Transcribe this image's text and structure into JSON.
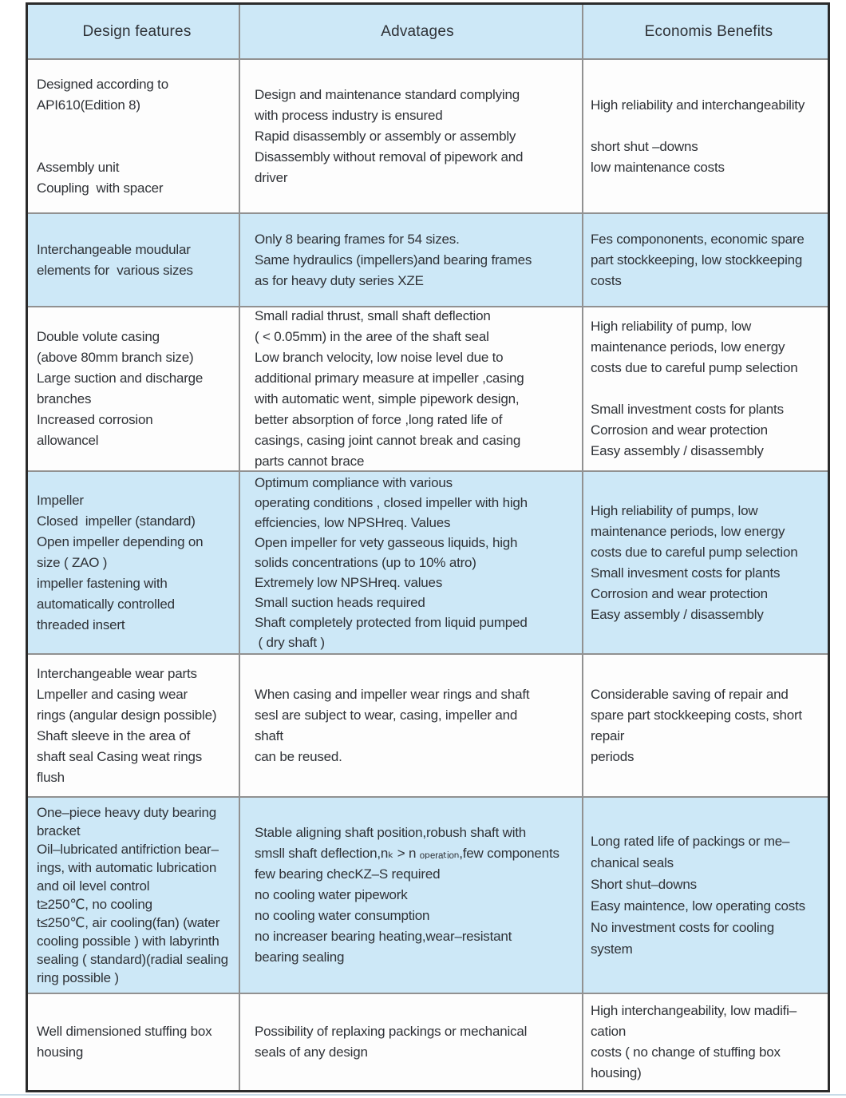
{
  "colors": {
    "cell_blue": "#cde8f7",
    "cell_white": "#fdfdfd",
    "border_outer": "#2b2b2b",
    "border_inner": "#919191",
    "text": "#2f3237",
    "bottom_rule": "#c7dbe8",
    "page_bg": "#ffffff"
  },
  "header": {
    "columns": [
      "Design features",
      "Advatages",
      "Economis Benefits"
    ]
  },
  "rows": [
    {
      "tone": "white",
      "features": [
        "Designed according to",
        "API610(Edition 8)",
        "",
        "",
        "Assembly unit",
        "Coupling  with spacer"
      ],
      "advantages": [
        "Design and maintenance standard complying",
        "with process industry is ensured",
        "Rapid disassembly or assembly or assembly",
        "Disassembly without removal of pipework and",
        "driver"
      ],
      "benefits": [
        "High reliability and interchangeability",
        "",
        "short shut –downs",
        "low maintenance costs"
      ]
    },
    {
      "tone": "blue",
      "features": [
        "Interchangeable moudular",
        "elements for  various sizes"
      ],
      "advantages": [
        "Only 8 bearing frames for 54 sizes.",
        "Same hydraulics (impellers)and bearing frames",
        "as for heavy duty series XZE"
      ],
      "benefits": [
        "Fes compononents, economic spare",
        "part stockkeeping, low stockkeeping",
        "costs"
      ]
    },
    {
      "tone": "white",
      "features": [
        "Double volute casing",
        "(above 80mm branch size)",
        "Large suction and discharge",
        "branches",
        "Increased corrosion",
        "allowancel"
      ],
      "advantages": [
        "Small radial thrust, small shaft deflection",
        "( < 0.05mm) in the aree of the shaft seal",
        "Low branch velocity, low noise level due to",
        "additional primary measure at impeller ,casing",
        "with automatic went, simple pipework design,",
        "better absorption of force ,long rated life of",
        "casings, casing joint cannot break and casing",
        "parts cannot brace"
      ],
      "benefits": [
        "High reliability of pump, low",
        "maintenance periods, low energy",
        "costs due to careful pump selection",
        "",
        "Small investment costs for plants",
        "Corrosion and wear protection",
        "Easy assembly / disassembly"
      ]
    },
    {
      "tone": "blue",
      "features": [
        "Impeller",
        "Closed  impeller (standard)",
        "Open impeller depending on",
        "size ( ZAO )",
        "impeller fastening with",
        "automatically controlled",
        "threaded insert"
      ],
      "advantages": [
        "Optimum compliance with various",
        "operating conditions , closed impeller with high",
        "effciencies, low NPSHreq. Values",
        "Open impeller for vety gasseous liquids, high",
        "solids concentrations (up to 10% atro)",
        "Extremely low NPSHreq. values",
        "Small suction heads required",
        "Shaft completely protected from liquid pumped",
        " ( dry shaft )"
      ],
      "benefits": [
        "High reliability of pumps, low",
        "maintenance periods, low energy",
        "costs due to careful pump selection",
        "Small invesment costs for plants",
        "Corrosion and wear protection",
        "Easy assembly / disassembly"
      ]
    },
    {
      "tone": "white",
      "features": [
        "Interchangeable wear parts",
        "Lmpeller and casing wear",
        "rings (angular design possible)",
        "Shaft sleeve in the area of",
        "shaft seal Casing weat rings",
        "flush"
      ],
      "advantages": [
        "When casing and impeller wear rings and shaft",
        "sesl are subject to wear, casing, impeller and",
        "shaft",
        "can be reused."
      ],
      "benefits": [
        "Considerable saving of repair and",
        "spare part stockkeeping costs, short",
        "repair",
        "periods"
      ]
    },
    {
      "tone": "blue",
      "features": [
        "One–piece heavy duty bearing",
        "bracket",
        "Oil–lubricated antifriction bear–",
        "ings, with automatic lubrication",
        "and oil level control",
        "t≥250℃, no cooling",
        "t≤250℃, air cooling(fan) (water",
        "cooling possible ) with labyrinth",
        "sealing ( standard)(radial sealing",
        "ring possible )"
      ],
      "advantages": [
        "Stable aligning shaft position,robush shaft with",
        "smsll shaft deflection,nₖ > n ₒₚₑᵣₐₜᵢₒₙ,few components",
        "few bearing checKZ–S required",
        "no cooling water pipework",
        "no cooling water consumption",
        "no increaser bearing heating,wear–resistant",
        "bearing sealing"
      ],
      "benefits": [
        "Long rated life of packings or me–",
        "chanical seals",
        "Short shut–downs",
        "Easy maintence, low operating costs",
        "No investment costs for cooling",
        "system"
      ]
    },
    {
      "tone": "white",
      "features": [
        "Well dimensioned stuffing box",
        "housing"
      ],
      "advantages": [
        "Possibility of replaxing packings or mechanical",
        "seals of any design"
      ],
      "benefits": [
        "High interchangeability, low madifi–",
        "cation",
        "costs ( no change of stuffing box",
        "housing)"
      ]
    }
  ]
}
